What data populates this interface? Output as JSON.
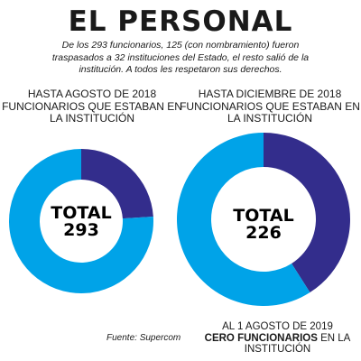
{
  "title": "EL PERSONAL",
  "intro": "De los 293 funcionarios, 125 (con nombramiento) fueron traspasados a 32 instituciones del Estado, el resto salió de la institución. A todos les respetaron sus derechos.",
  "colors": {
    "light_blue": "#00a3e8",
    "dark_blue": "#332d8c"
  },
  "chart_data": [
    {
      "type": "pie",
      "title": "HASTA AGOSTO DE 2018 FUNCIONARIOS QUE ESTABAN EN LA INSTITUCIÓN",
      "center_label": "TOTAL",
      "center_value": "293",
      "total": 293,
      "slices": [
        {
          "color": "#332d8c",
          "fraction": 0.24
        },
        {
          "color": "#00a3e8",
          "fraction": 0.76
        }
      ]
    },
    {
      "type": "pie",
      "title": "HASTA DICIEMBRE DE 2018 FUNCIONARIOS QUE ESTABAN EN LA INSTITUCIÓN",
      "center_label": "TOTAL",
      "center_value": "226",
      "total": 226,
      "slices": [
        {
          "color": "#332d8c",
          "fraction": 0.41
        },
        {
          "color": "#00a3e8",
          "fraction": 0.59
        }
      ]
    }
  ],
  "source": "Fuente: Supercom",
  "footnote": {
    "line1": "AL 1 AGOSTO DE 2019",
    "bold": "CERO FUNCIONARIOS",
    "rest": " EN LA INSTITUCIÓN"
  }
}
